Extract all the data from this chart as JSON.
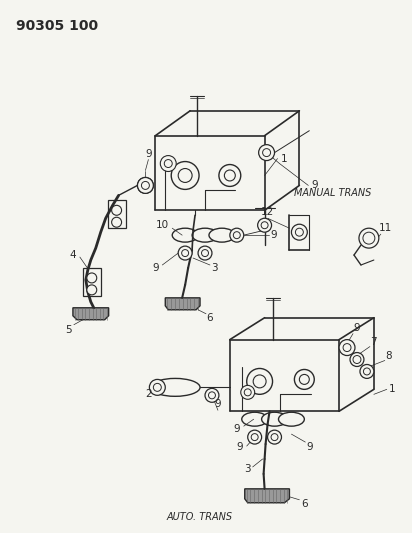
{
  "title": "90305 100",
  "bg": "#f5f5f0",
  "lc": "#2a2a2a",
  "tc": "#2a2a2a",
  "manual_trans": "MANUAL TRANS",
  "auto_trans": "AUTO. TRANS",
  "fig_w": 4.12,
  "fig_h": 5.33,
  "dpi": 100
}
